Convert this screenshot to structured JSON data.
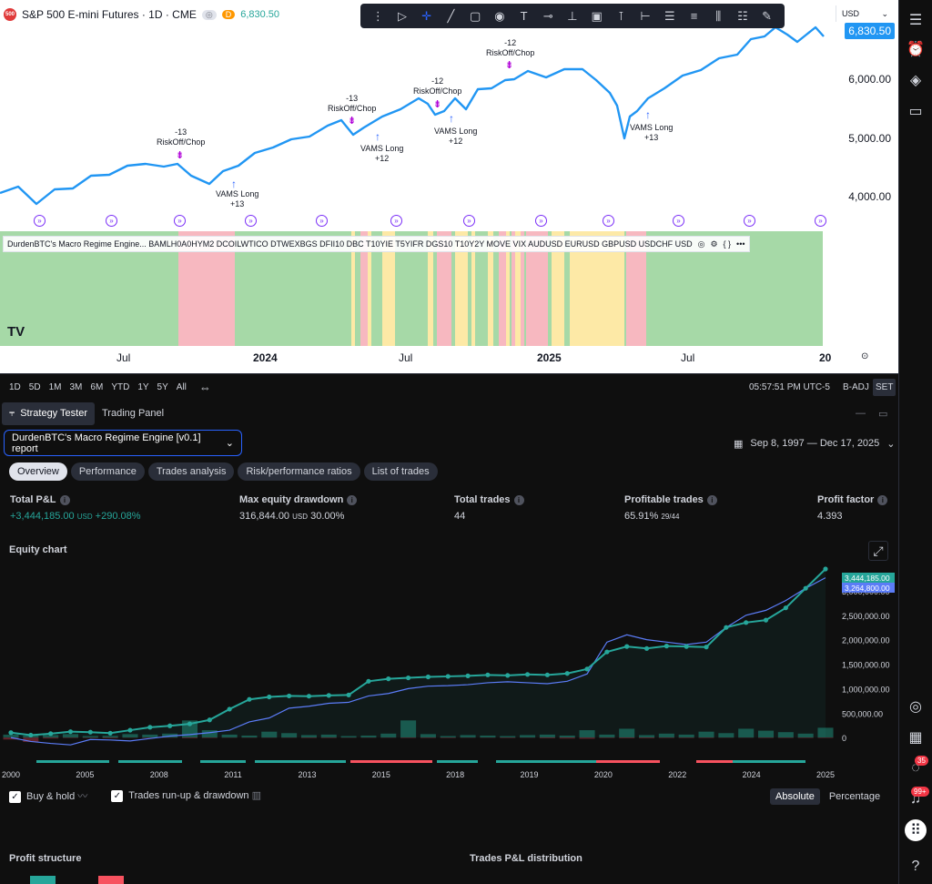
{
  "symbol": {
    "name": "S&P 500 E-mini Futures · 1D · CME",
    "logo": "500",
    "live_price": "6,830.50",
    "badge_d": "D"
  },
  "currency": {
    "label": "USD"
  },
  "price_axis": {
    "ticks": [
      "6,000.00",
      "5,000.00",
      "4,000.00"
    ],
    "live": "6,830.50"
  },
  "annotations": [
    {
      "text": "-13\nRiskOff/Chop"
    },
    {
      "text": "VAMS Long\n+13"
    },
    {
      "text": "-13\nRiskOff/Chop"
    },
    {
      "text": "VAMS Long\n+12"
    },
    {
      "text": "-12\nRiskOff/Chop"
    },
    {
      "text": "VAMS Long\n+12"
    },
    {
      "text": "-12\nRiskOff/Chop"
    },
    {
      "text": "VAMS Long\n+13"
    }
  ],
  "indicator": {
    "legend": "DurdenBTC's Macro Regime Engine... BAMLH0A0HYM2 DCOILWTICO DTWEXBGS DFII10 DBC T10YIE T5YIFR DGS10 T10Y2Y MOVE VIX AUDUSD EURUSD GBPUSD USDCHF USD"
  },
  "regime_colors": {
    "green": "#a6d9a7",
    "red": "#f7b8c0",
    "yellow": "#fde9a6"
  },
  "time_axis": [
    "Jul",
    "2024",
    "Jul",
    "2025",
    "Jul",
    "20"
  ],
  "range_bar": {
    "ranges": [
      "1D",
      "5D",
      "1M",
      "3M",
      "6M",
      "YTD",
      "1Y",
      "5Y",
      "All"
    ],
    "clock": "05:57:51 PM UTC-5",
    "adj": "B-ADJ",
    "set": "SET"
  },
  "tester": {
    "tabs": [
      "Strategy Tester",
      "Trading Panel"
    ],
    "report": "DurdenBTC's Macro Regime Engine [v0.1] report",
    "date_range": "Sep 8, 1997 — Dec 17, 2025",
    "subtabs": [
      "Overview",
      "Performance",
      "Trades analysis",
      "Risk/performance ratios",
      "List of trades"
    ],
    "metrics": [
      {
        "label": "Total P&L",
        "value": "+3,444,185.00",
        "unit": "USD",
        "extra": "+290.08%",
        "green": true
      },
      {
        "label": "Max equity drawdown",
        "value": "316,844.00",
        "unit": "USD",
        "extra": "30.00%",
        "green": false
      },
      {
        "label": "Total trades",
        "value": "44",
        "unit": "",
        "extra": "",
        "green": false
      },
      {
        "label": "Profitable trades",
        "value": "65.91%",
        "unit": "29/44",
        "extra": "",
        "green": false
      },
      {
        "label": "Profit factor",
        "value": "4.393",
        "unit": "",
        "extra": "",
        "green": false
      }
    ],
    "equity_title": "Equity chart",
    "legend": {
      "buy_hold": "Buy & hold",
      "runup": "Trades run-up & drawdown"
    },
    "modes": [
      "Absolute",
      "Percentage"
    ],
    "profit_structure": "Profit structure",
    "pnl_distribution": "Trades P&L distribution"
  },
  "chart_data": {
    "type": "line",
    "x_labels": [
      "2000",
      "2005",
      "2008",
      "2011",
      "2013",
      "2015",
      "2018",
      "2019",
      "2020",
      "2022",
      "2024",
      "2025"
    ],
    "y_ticks": [
      "3,000,000.00",
      "2,500,000.00",
      "2,000,000.00",
      "1,500,000.00",
      "1,000,000.00",
      "500,000.00",
      "0"
    ],
    "ylim": [
      -500000,
      3500000
    ],
    "series": [
      {
        "name": "Equity",
        "values": [
          100000,
          50000,
          80000,
          120000,
          110000,
          90000,
          150000,
          210000,
          240000,
          280000,
          360000,
          580000,
          780000,
          830000,
          850000,
          845000,
          860000,
          870000,
          1150000,
          1200000,
          1220000,
          1240000,
          1250000,
          1260000,
          1280000,
          1270000,
          1290000,
          1280000,
          1310000,
          1400000,
          1750000,
          1860000,
          1820000,
          1870000,
          1860000,
          1850000,
          2250000,
          2350000,
          2400000,
          2650000,
          3050000,
          3444185
        ]
      },
      {
        "name": "Buy & hold",
        "values": [
          0,
          -80000,
          -120000,
          -150000,
          -40000,
          -50000,
          -70000,
          -20000,
          30000,
          60000,
          100000,
          150000,
          320000,
          400000,
          600000,
          640000,
          700000,
          720000,
          850000,
          900000,
          1000000,
          1050000,
          1060000,
          1080000,
          1120000,
          1140000,
          1120000,
          1100000,
          1150000,
          1300000,
          1950000,
          2100000,
          2000000,
          1950000,
          1900000,
          1950000,
          2250000,
          2500000,
          2600000,
          2800000,
          3050000,
          3264800
        ]
      }
    ],
    "last_equity_label": "3,444,185.00",
    "last_bh_label": "3,264,800.00"
  }
}
